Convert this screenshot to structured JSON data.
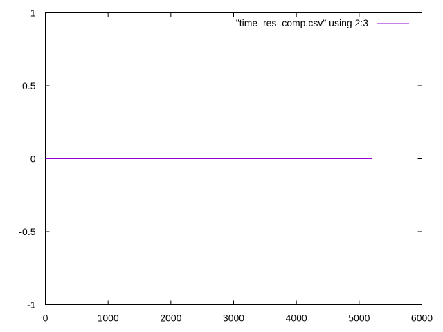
{
  "chart_data": {
    "type": "line",
    "title": "",
    "xlabel": "",
    "ylabel": "",
    "xlim": [
      0,
      6000
    ],
    "ylim": [
      -1,
      1
    ],
    "xticks": [
      0,
      1000,
      2000,
      3000,
      4000,
      5000,
      6000
    ],
    "xtick_labels": [
      "0",
      "1000",
      "2000",
      "3000",
      "4000",
      "5000",
      "6000"
    ],
    "yticks": [
      -1,
      -0.5,
      0,
      0.5,
      1
    ],
    "ytick_labels": [
      "-1",
      "-0.5",
      "0",
      "0.5",
      "1"
    ],
    "grid": false,
    "legend_position": "top-right",
    "series": [
      {
        "name": "\"time_res_comp.csv\" using 2:3",
        "color": "#9400d3",
        "x": [
          0,
          5200
        ],
        "y": [
          0,
          0
        ]
      }
    ]
  }
}
